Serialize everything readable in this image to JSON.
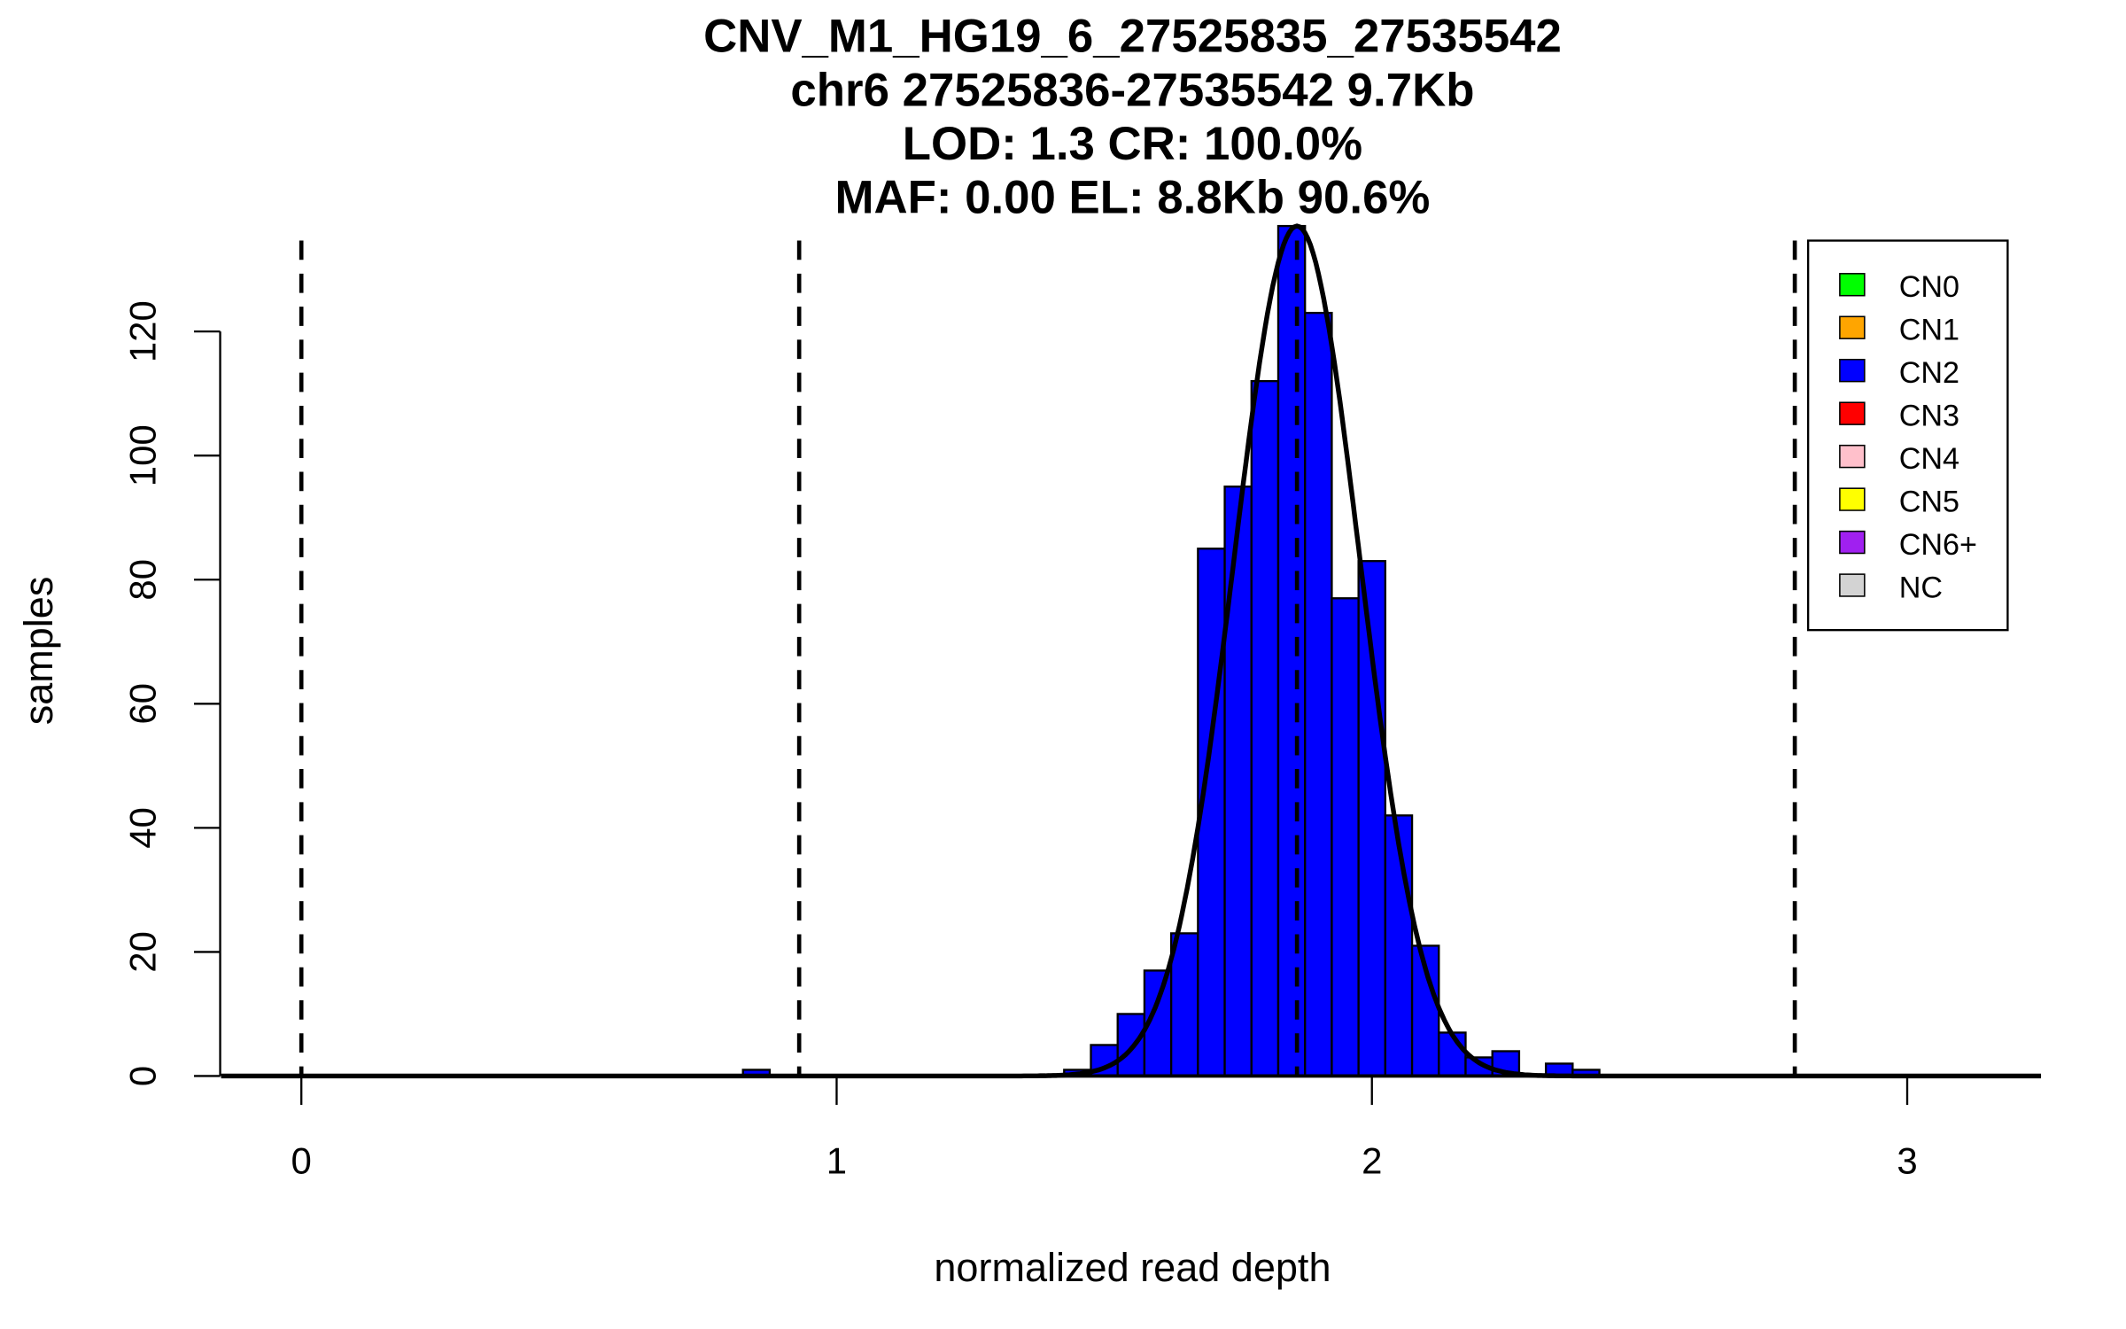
{
  "chart_data": {
    "type": "bar",
    "title_lines": [
      "CNV_M1_HG19_6_27525835_27535542",
      "chr6 27525836-27535542 9.7Kb",
      "LOD: 1.3 CR: 100.0%",
      "MAF: 0.00 EL: 8.8Kb 90.6%"
    ],
    "xlabel": "normalized read depth",
    "ylabel": "samples",
    "xlim": [
      -0.15,
      3.25
    ],
    "ylim": [
      0,
      137
    ],
    "xticks": [
      "0",
      "1",
      "2",
      "3"
    ],
    "yticks": [
      "0",
      "20",
      "40",
      "60",
      "80",
      "100",
      "120"
    ],
    "bin_width": 0.05,
    "bins": [
      {
        "left": 0.825,
        "count": 1
      },
      {
        "left": 1.425,
        "count": 1
      },
      {
        "left": 1.475,
        "count": 5
      },
      {
        "left": 1.525,
        "count": 10
      },
      {
        "left": 1.575,
        "count": 17
      },
      {
        "left": 1.625,
        "count": 23
      },
      {
        "left": 1.675,
        "count": 85
      },
      {
        "left": 1.725,
        "count": 95
      },
      {
        "left": 1.775,
        "count": 112
      },
      {
        "left": 1.825,
        "count": 137
      },
      {
        "left": 1.875,
        "count": 123
      },
      {
        "left": 1.925,
        "count": 77
      },
      {
        "left": 1.975,
        "count": 83
      },
      {
        "left": 2.025,
        "count": 42
      },
      {
        "left": 2.075,
        "count": 21
      },
      {
        "left": 2.125,
        "count": 7
      },
      {
        "left": 2.175,
        "count": 3
      },
      {
        "left": 2.225,
        "count": 4
      },
      {
        "left": 2.325,
        "count": 2
      },
      {
        "left": 2.375,
        "count": 1
      }
    ],
    "bar_color": "#0000FF",
    "fit_curve": {
      "mean": 1.86,
      "sd": 0.118,
      "peak": 137
    },
    "copy_number_thresholds": [
      0.0,
      0.93,
      1.86,
      2.79
    ],
    "legend": {
      "placement": "top-right",
      "entries": [
        {
          "label": "CN0",
          "color": "#00FF00"
        },
        {
          "label": "CN1",
          "color": "#FFA500"
        },
        {
          "label": "CN2",
          "color": "#0000FF"
        },
        {
          "label": "CN3",
          "color": "#FF0000"
        },
        {
          "label": "CN4",
          "color": "#FFC0CB"
        },
        {
          "label": "CN5",
          "color": "#FFFF00"
        },
        {
          "label": "CN6+",
          "color": "#A020F0"
        },
        {
          "label": "NC",
          "color": "#D3D3D3"
        }
      ]
    }
  }
}
